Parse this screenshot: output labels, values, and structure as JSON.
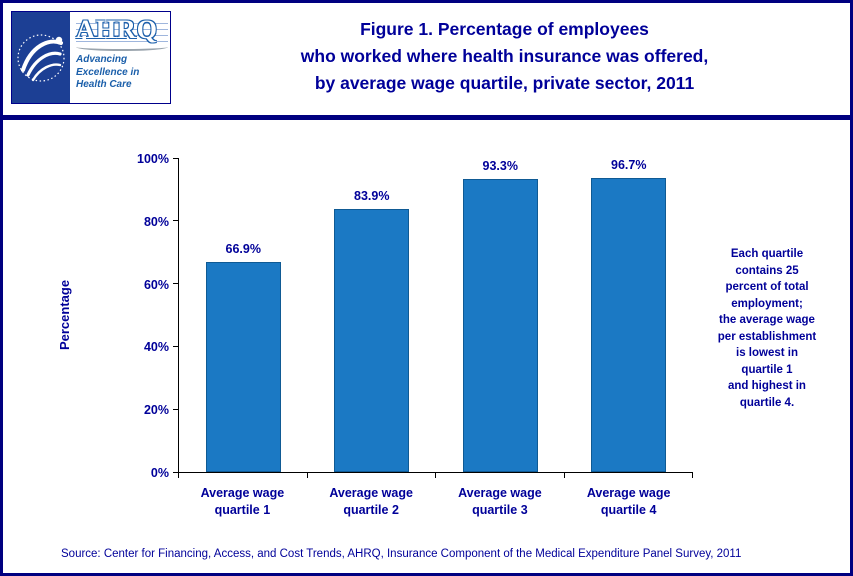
{
  "header": {
    "logo": {
      "acronym": "AHRQ",
      "tagline_lines": [
        "Advancing",
        "Excellence in",
        "Health Care"
      ]
    },
    "title_lines": [
      "Figure 1. Percentage of employees",
      "who worked where health insurance was offered,",
      "by average wage quartile, private sector, 2011"
    ]
  },
  "chart_data": {
    "type": "bar",
    "categories": [
      [
        "Average wage",
        "quartile 1"
      ],
      [
        "Average wage",
        "quartile 2"
      ],
      [
        "Average wage",
        "quartile 3"
      ],
      [
        "Average wage",
        "quartile 4"
      ]
    ],
    "values": [
      66.9,
      83.9,
      93.3,
      96.7
    ],
    "value_labels": [
      "66.9%",
      "83.9%",
      "93.3%",
      "96.7%"
    ],
    "ylabel": "Percentage",
    "ytick_labels": [
      "0%",
      "20%",
      "40%",
      "60%",
      "80%",
      "100%"
    ],
    "ytick_values": [
      0,
      20,
      40,
      60,
      80,
      100
    ],
    "ylim": [
      0,
      100
    ],
    "bar_color": "#1b79c4",
    "grid": false,
    "legend": "none"
  },
  "annotation": {
    "lines": [
      "Each quartile",
      "contains 25",
      "percent of total",
      "employment;",
      "the average wage",
      "per establishment",
      "is lowest in",
      "quartile 1",
      "and highest in",
      "quartile 4."
    ]
  },
  "footer": {
    "source": "Source: Center for Financing, Access, and Cost Trends, AHRQ, Insurance Component of the Medical Expenditure Panel Survey, 2011"
  },
  "colors": {
    "navy_text": "#000099",
    "border_navy": "#000080",
    "bar_blue": "#1b79c4",
    "hhs_blue": "#1c3f94",
    "ahrq_blue": "#1b5faa"
  }
}
